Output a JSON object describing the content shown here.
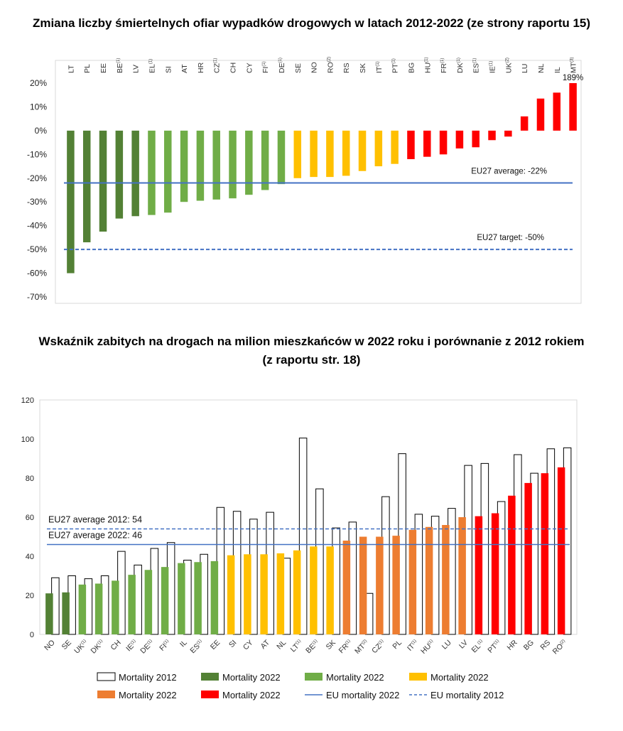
{
  "chart_data": [
    {
      "type": "bar",
      "title": "Zmiana liczby śmiertelnych ofiar wypadków drogowych w latach 2012-2022 (ze strony raportu 15)",
      "ylim": [
        -70,
        20
      ],
      "yticks": [
        "20%",
        "10%",
        "0%",
        "-10%",
        "-20%",
        "-30%",
        "-40%",
        "-50%",
        "-60%",
        "-70%"
      ],
      "ytick_values": [
        20,
        10,
        0,
        -10,
        -20,
        -30,
        -40,
        -50,
        -60,
        -70
      ],
      "grid": false,
      "categories": [
        {
          "code": "LT",
          "sup": ""
        },
        {
          "code": "PL",
          "sup": ""
        },
        {
          "code": "EE",
          "sup": ""
        },
        {
          "code": "BE",
          "sup": "(1)"
        },
        {
          "code": "LV",
          "sup": ""
        },
        {
          "code": "EL",
          "sup": "(1)"
        },
        {
          "code": "SI",
          "sup": ""
        },
        {
          "code": "AT",
          "sup": ""
        },
        {
          "code": "HR",
          "sup": ""
        },
        {
          "code": "CZ",
          "sup": "(1)"
        },
        {
          "code": "CH",
          "sup": ""
        },
        {
          "code": "CY",
          "sup": ""
        },
        {
          "code": "FI",
          "sup": "(1)"
        },
        {
          "code": "DE",
          "sup": "(1)"
        },
        {
          "code": "SE",
          "sup": ""
        },
        {
          "code": "NO",
          "sup": ""
        },
        {
          "code": "RO",
          "sup": "(2)"
        },
        {
          "code": "RS",
          "sup": ""
        },
        {
          "code": "SK",
          "sup": ""
        },
        {
          "code": "IT",
          "sup": "(1)"
        },
        {
          "code": "PT",
          "sup": "(1)"
        },
        {
          "code": "BG",
          "sup": ""
        },
        {
          "code": "HU",
          "sup": "(1)"
        },
        {
          "code": "FR",
          "sup": "(1)"
        },
        {
          "code": "DK",
          "sup": "(1)"
        },
        {
          "code": "ES",
          "sup": "(1)"
        },
        {
          "code": "IE",
          "sup": "(1)"
        },
        {
          "code": "UK",
          "sup": "(2)"
        },
        {
          "code": "LU",
          "sup": ""
        },
        {
          "code": "NL",
          "sup": ""
        },
        {
          "code": "IL",
          "sup": ""
        },
        {
          "code": "MT",
          "sup": "(3)"
        }
      ],
      "values": [
        -60,
        -47,
        -42.5,
        -37,
        -36,
        -35.5,
        -34.5,
        -30,
        -29.5,
        -29,
        -28.5,
        -27,
        -25,
        -22.5,
        -20,
        -19.5,
        -19.5,
        -19,
        -17,
        -15,
        -14,
        -12,
        -11,
        -10,
        -7.5,
        -7,
        -4,
        -2.5,
        6,
        13.5,
        16,
        20
      ],
      "bar_colors": [
        "#538135",
        "#538135",
        "#538135",
        "#538135",
        "#538135",
        "#70ad47",
        "#70ad47",
        "#70ad47",
        "#70ad47",
        "#70ad47",
        "#70ad47",
        "#70ad47",
        "#70ad47",
        "#70ad47",
        "#ffc000",
        "#ffc000",
        "#ffc000",
        "#ffc000",
        "#ffc000",
        "#ffc000",
        "#ffc000",
        "#ff0000",
        "#ff0000",
        "#ff0000",
        "#ff0000",
        "#ff0000",
        "#ff0000",
        "#ff0000",
        "#ff0000",
        "#ff0000",
        "#ff0000",
        "#ff0000"
      ],
      "data_labels": [
        {
          "category": "MT",
          "text": "189%"
        }
      ],
      "reference_lines": [
        {
          "value": -22,
          "label": "EU27 average: -22%",
          "style": "solid",
          "color": "#4472c4"
        },
        {
          "value": -50,
          "label": "EU27 target: -50%",
          "style": "dashed",
          "color": "#4472c4"
        }
      ]
    },
    {
      "type": "bar",
      "title_line1": "Wskaźnik zabitych na drogach na milion mieszkańców w 2022 roku i porównanie z 2012 rokiem",
      "title_line2": "(z raportu str. 18)",
      "ylim": [
        0,
        120
      ],
      "yticks": [
        "0",
        "20",
        "40",
        "60",
        "80",
        "100",
        "120"
      ],
      "ytick_values": [
        0,
        20,
        40,
        60,
        80,
        100,
        120
      ],
      "grid": false,
      "categories": [
        {
          "code": "NO",
          "sup": ""
        },
        {
          "code": "SE",
          "sup": ""
        },
        {
          "code": "UK",
          "sup": "(1)"
        },
        {
          "code": "DK",
          "sup": "(1)"
        },
        {
          "code": "CH",
          "sup": ""
        },
        {
          "code": "IE",
          "sup": "(1)"
        },
        {
          "code": "DE",
          "sup": "(1)"
        },
        {
          "code": "FI",
          "sup": "(1)"
        },
        {
          "code": "IL",
          "sup": ""
        },
        {
          "code": "ES",
          "sup": "(1)"
        },
        {
          "code": "EE",
          "sup": ""
        },
        {
          "code": "SI",
          "sup": ""
        },
        {
          "code": "CY",
          "sup": ""
        },
        {
          "code": "AT",
          "sup": ""
        },
        {
          "code": "NL",
          "sup": ""
        },
        {
          "code": "LT",
          "sup": "(1)"
        },
        {
          "code": "BE",
          "sup": "(1)"
        },
        {
          "code": "SK",
          "sup": ""
        },
        {
          "code": "FR",
          "sup": "(1)"
        },
        {
          "code": "MT",
          "sup": "(2)"
        },
        {
          "code": "CZ",
          "sup": "(1)"
        },
        {
          "code": "PL",
          "sup": ""
        },
        {
          "code": "IT",
          "sup": "(1)"
        },
        {
          "code": "HU",
          "sup": "(1)"
        },
        {
          "code": "LU",
          "sup": ""
        },
        {
          "code": "LV",
          "sup": ""
        },
        {
          "code": "EL",
          "sup": "(1)"
        },
        {
          "code": "PT",
          "sup": "(1)"
        },
        {
          "code": "HR",
          "sup": ""
        },
        {
          "code": "BG",
          "sup": ""
        },
        {
          "code": "RS",
          "sup": ""
        },
        {
          "code": "RO",
          "sup": "(2)"
        }
      ],
      "series": [
        {
          "name": "Mortality 2012",
          "values": [
            29,
            30,
            28.5,
            30,
            42.5,
            35.5,
            44,
            47,
            38,
            41,
            65,
            63,
            59,
            62.5,
            39,
            100.5,
            74.5,
            54.5,
            57.5,
            21,
            70.5,
            92.5,
            61.5,
            60.5,
            64.5,
            86.5,
            87.5,
            68,
            92,
            82.5,
            95,
            95.5
          ]
        },
        {
          "name": "Mortality 2022",
          "values": [
            21,
            21.5,
            25.5,
            26,
            27.5,
            30.5,
            33,
            34.5,
            36.5,
            37,
            37.5,
            40.5,
            41,
            41,
            41.5,
            43,
            45,
            45,
            48,
            50,
            50,
            50.5,
            53.5,
            55,
            56,
            60,
            60.5,
            62,
            71,
            77.5,
            82.5,
            85.5
          ]
        }
      ],
      "bar_colors_2022": [
        "#538135",
        "#538135",
        "#70ad47",
        "#70ad47",
        "#70ad47",
        "#70ad47",
        "#70ad47",
        "#70ad47",
        "#70ad47",
        "#70ad47",
        "#70ad47",
        "#ffc000",
        "#ffc000",
        "#ffc000",
        "#ffc000",
        "#ffc000",
        "#ffc000",
        "#ffc000",
        "#ed7d31",
        "#ed7d31",
        "#ed7d31",
        "#ed7d31",
        "#ed7d31",
        "#ed7d31",
        "#ed7d31",
        "#ed7d31",
        "#ff0000",
        "#ff0000",
        "#ff0000",
        "#ff0000",
        "#ff0000",
        "#ff0000"
      ],
      "reference_lines": [
        {
          "value": 54,
          "label": "EU27 average 2012: 54",
          "style": "dashed",
          "color": "#4472c4"
        },
        {
          "value": 46,
          "label": "EU27 average 2022: 46",
          "style": "solid",
          "color": "#4472c4"
        }
      ],
      "legend": [
        {
          "label": "Mortality 2012",
          "kind": "outline"
        },
        {
          "label": "Mortality 2022",
          "kind": "fill",
          "color": "#538135"
        },
        {
          "label": "Mortality 2022",
          "kind": "fill",
          "color": "#70ad47"
        },
        {
          "label": "Mortality 2022",
          "kind": "fill",
          "color": "#ffc000"
        },
        {
          "label": "Mortality 2022",
          "kind": "fill",
          "color": "#ed7d31"
        },
        {
          "label": "Mortality 2022",
          "kind": "fill",
          "color": "#ff0000"
        },
        {
          "label": "EU mortality 2022",
          "kind": "solid-line",
          "color": "#4472c4"
        },
        {
          "label": "EU mortality 2012",
          "kind": "dashed-line",
          "color": "#4472c4"
        }
      ],
      "legend_position": "bottom"
    }
  ]
}
